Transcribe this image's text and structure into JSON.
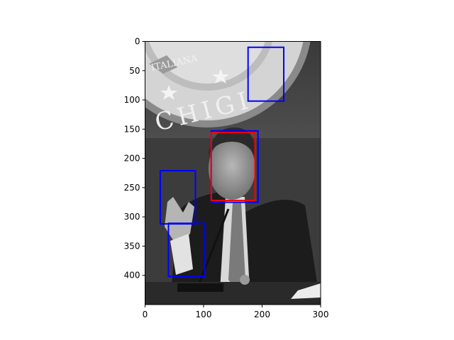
{
  "figure": {
    "type": "image-with-bounding-boxes",
    "image_size": {
      "width": 300,
      "height": 450
    },
    "xlim": [
      0,
      300
    ],
    "ylim": [
      450,
      0
    ],
    "x_ticks": [
      0,
      100,
      200,
      300
    ],
    "y_ticks": [
      0,
      50,
      100,
      150,
      200,
      250,
      300,
      350,
      400
    ],
    "x_tick_labels": [
      "0",
      "100",
      "200",
      "300"
    ],
    "y_tick_labels": [
      "0",
      "50",
      "100",
      "150",
      "200",
      "250",
      "300",
      "350",
      "400"
    ],
    "image_mode": "grayscale",
    "scene_text": {
      "seal_top": "ITALIANA",
      "seal_bottom": "CHIGI"
    }
  },
  "boxes": [
    {
      "id": "blue-1",
      "color": "#0000ff",
      "x0": 176,
      "y0": 10,
      "x1": 237,
      "y1": 102
    },
    {
      "id": "blue-2",
      "color": "#0000ff",
      "x0": 113,
      "y0": 153,
      "x1": 193,
      "y1": 275
    },
    {
      "id": "red-1",
      "color": "#ff0000",
      "x0": 113,
      "y0": 156,
      "x1": 188,
      "y1": 272
    },
    {
      "id": "blue-3",
      "color": "#0000ff",
      "x0": 26,
      "y0": 221,
      "x1": 86,
      "y1": 312
    },
    {
      "id": "blue-4",
      "color": "#0000ff",
      "x0": 40,
      "y0": 311,
      "x1": 102,
      "y1": 402
    }
  ]
}
